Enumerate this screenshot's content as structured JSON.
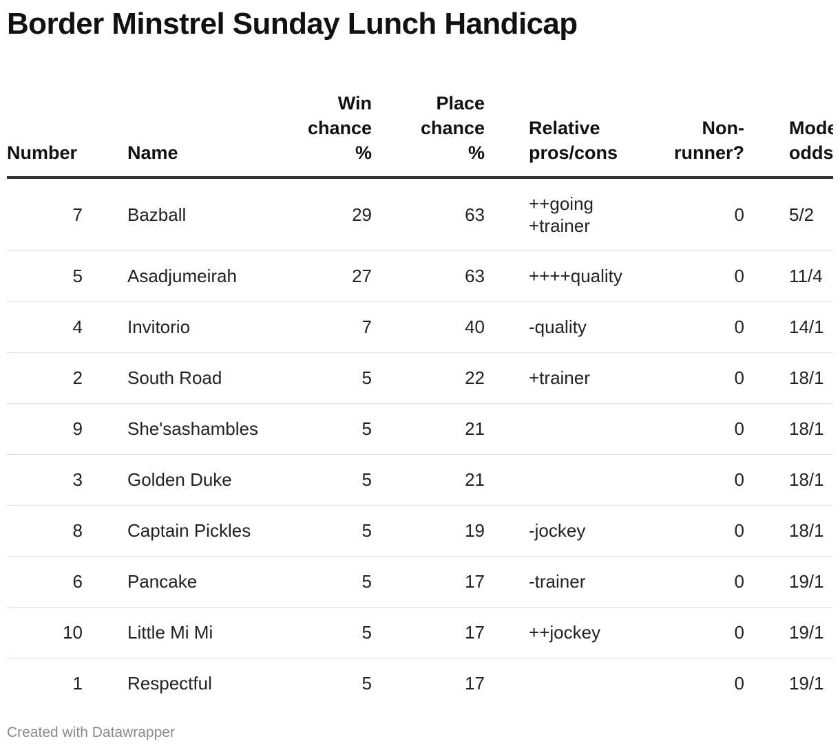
{
  "title": "Border Minstrel Sunday Lunch Handicap",
  "footer": "Created with Datawrapper",
  "chart_data": {
    "type": "table",
    "columns": [
      "Number",
      "Name",
      "Win chance %",
      "Place chance %",
      "Relative pros/cons",
      "Non-runner?",
      "Model odds"
    ],
    "header_lines": {
      "number": [
        "Number"
      ],
      "name": [
        "Name"
      ],
      "win": [
        "Win",
        "chance",
        "%"
      ],
      "place": [
        "Place",
        "chance",
        "%"
      ],
      "proscons": [
        "Relative",
        "pros/cons"
      ],
      "nonrunner": [
        "Non-",
        "runner?"
      ],
      "odds": [
        "Model",
        "odds"
      ]
    },
    "rows": [
      {
        "number": "7",
        "name": "Bazball",
        "win": "29",
        "place": "63",
        "proscons": [
          "++going",
          "+trainer"
        ],
        "nonrunner": "0",
        "odds": "5/2"
      },
      {
        "number": "5",
        "name": "Asadjumeirah",
        "win": "27",
        "place": "63",
        "proscons": [
          "++++quality"
        ],
        "nonrunner": "0",
        "odds": "11/4"
      },
      {
        "number": "4",
        "name": "Invitorio",
        "win": "7",
        "place": "40",
        "proscons": [
          "-quality"
        ],
        "nonrunner": "0",
        "odds": "14/1"
      },
      {
        "number": "2",
        "name": "South Road",
        "win": "5",
        "place": "22",
        "proscons": [
          "+trainer"
        ],
        "nonrunner": "0",
        "odds": "18/1"
      },
      {
        "number": "9",
        "name": "She'sashambles",
        "win": "5",
        "place": "21",
        "proscons": [],
        "nonrunner": "0",
        "odds": "18/1"
      },
      {
        "number": "3",
        "name": "Golden Duke",
        "win": "5",
        "place": "21",
        "proscons": [],
        "nonrunner": "0",
        "odds": "18/1"
      },
      {
        "number": "8",
        "name": "Captain Pickles",
        "win": "5",
        "place": "19",
        "proscons": [
          "-jockey"
        ],
        "nonrunner": "0",
        "odds": "18/1"
      },
      {
        "number": "6",
        "name": "Pancake",
        "win": "5",
        "place": "17",
        "proscons": [
          "-trainer"
        ],
        "nonrunner": "0",
        "odds": "19/1"
      },
      {
        "number": "10",
        "name": "Little Mi Mi",
        "win": "5",
        "place": "17",
        "proscons": [
          "++jockey"
        ],
        "nonrunner": "0",
        "odds": "19/1"
      },
      {
        "number": "1",
        "name": "Respectful",
        "win": "5",
        "place": "17",
        "proscons": [],
        "nonrunner": "0",
        "odds": "19/1"
      }
    ]
  }
}
